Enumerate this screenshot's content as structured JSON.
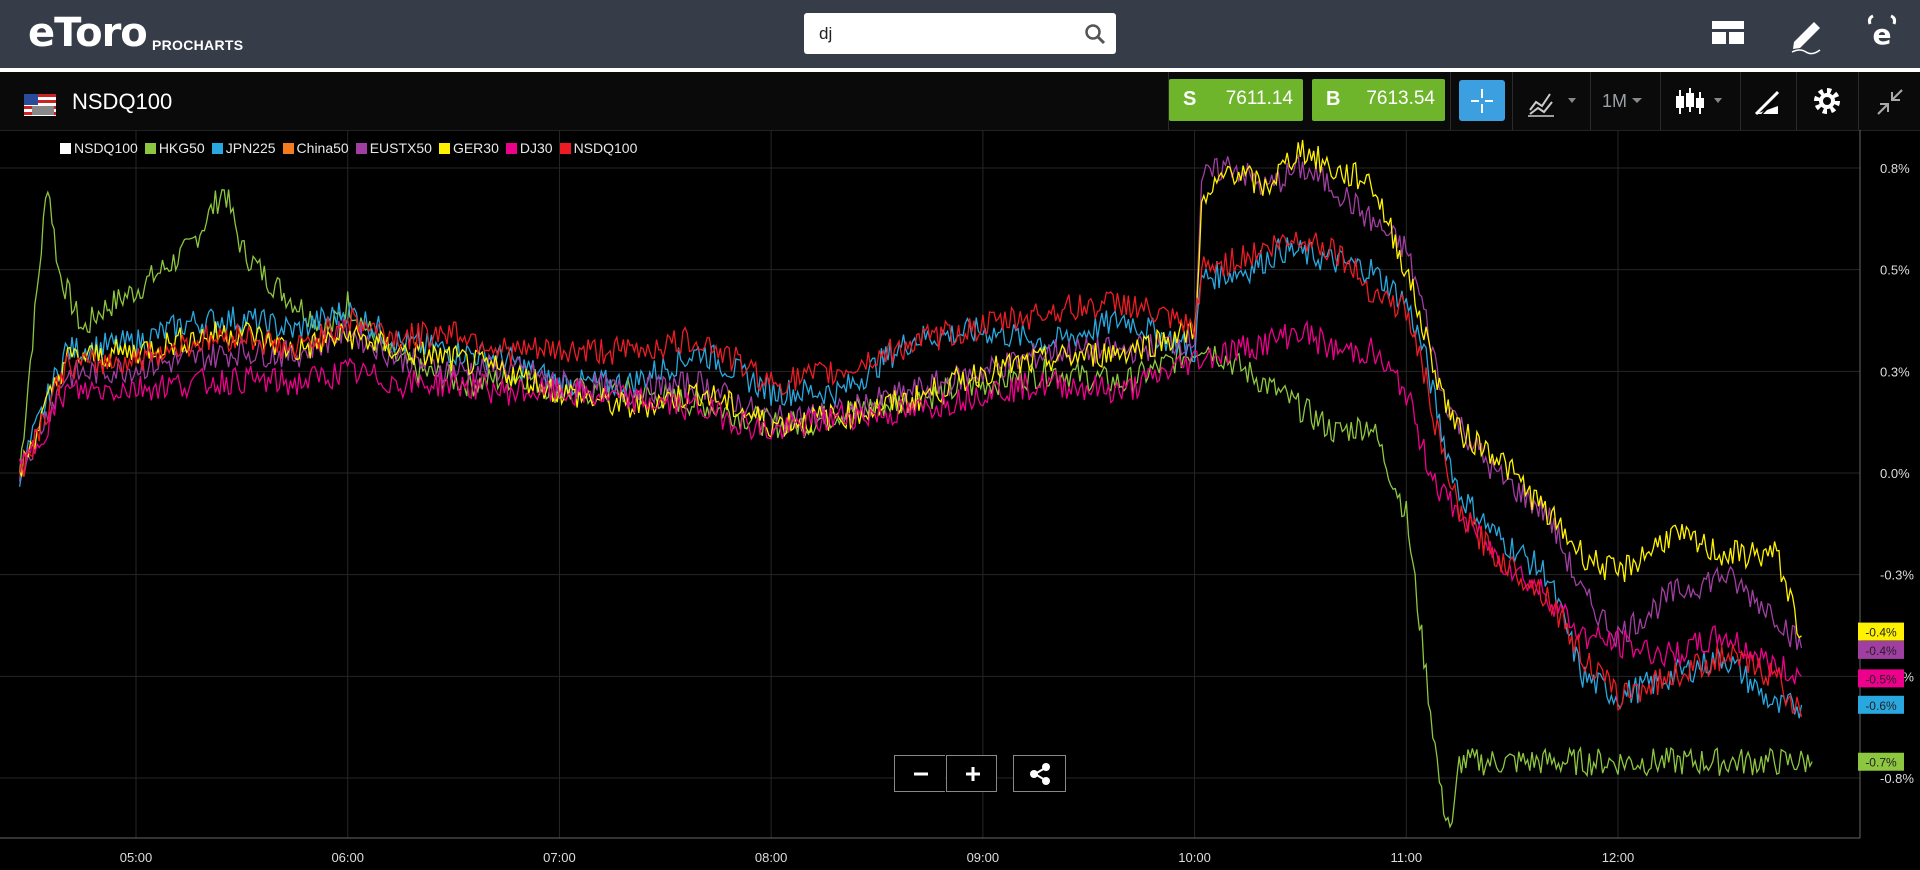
{
  "app": {
    "logo": "eToro",
    "product": "PROCHARTS"
  },
  "search": {
    "value": "dj"
  },
  "header": {
    "symbol": "NSDQ100"
  },
  "trade": {
    "sell_label": "S",
    "sell_price": "7611.14",
    "buy_label": "B",
    "buy_price": "7613.54"
  },
  "toolbar": {
    "timeframe": "1M"
  },
  "colors": {
    "topbar": "#373d48",
    "accent_blue": "#3b9fe0",
    "trade_green": "#6fb52c",
    "NSDQ100_base": "#ffffff",
    "HKG50": "#8dc63f",
    "JPN225": "#29a8e0",
    "China50": "#f47b20",
    "EUSTX50": "#a13ea1",
    "GER30": "#fff200",
    "DJ30": "#ec008c",
    "NSDQ100": "#ed1c24"
  },
  "chart_data": {
    "type": "line",
    "ylabel_format": "percent",
    "ylim": [
      -1.0,
      0.88
    ],
    "grid": true,
    "legend_position": "top-left",
    "x_ticks": [
      "05:00",
      "06:00",
      "07:00",
      "08:00",
      "09:00",
      "10:00",
      "11:00",
      "12:00"
    ],
    "y_ticks": [
      "0.8%",
      "0.5%",
      "0.3%",
      "0.0%",
      "-0.3%",
      "-0.5%",
      "-0.8%"
    ],
    "y_tick_values": [
      0.75,
      0.5,
      0.25,
      0.0,
      -0.25,
      -0.5,
      -0.75
    ],
    "x_range": [
      "04:25",
      "13:00"
    ],
    "series": [
      {
        "name": "NSDQ100",
        "color": "#ffffff",
        "x": [],
        "values": []
      },
      {
        "name": "HKG50",
        "color": "#8dc63f",
        "end_label": "-0.7%",
        "x": [
          "04:27",
          "04:35",
          "04:38",
          "04:45",
          "04:50",
          "05:00",
          "05:15",
          "05:25",
          "05:30",
          "05:37",
          "05:45",
          "05:55",
          "06:00",
          "06:10",
          "06:20",
          "06:35",
          "06:50",
          "07:00",
          "07:20",
          "07:40",
          "08:00",
          "08:10",
          "08:20",
          "08:40",
          "09:00",
          "09:20",
          "09:40",
          "10:00",
          "10:02",
          "10:20",
          "10:40",
          "10:50",
          "11:00",
          "11:05",
          "11:10",
          "11:13",
          "11:15",
          "12:00",
          "12:55"
        ],
        "values": [
          0.0,
          0.72,
          0.5,
          0.35,
          0.4,
          0.45,
          0.55,
          0.7,
          0.55,
          0.48,
          0.42,
          0.35,
          0.42,
          0.3,
          0.25,
          0.22,
          0.24,
          0.2,
          0.2,
          0.17,
          0.12,
          0.12,
          0.15,
          0.18,
          0.22,
          0.25,
          0.22,
          0.3,
          0.32,
          0.22,
          0.1,
          0.12,
          -0.1,
          -0.45,
          -0.8,
          -0.88,
          -0.71,
          -0.71,
          -0.71
        ]
      },
      {
        "name": "JPN225",
        "color": "#29a8e0",
        "x": [
          "04:27",
          "04:40",
          "05:00",
          "05:15",
          "05:30",
          "05:45",
          "06:00",
          "06:15",
          "06:30",
          "06:45",
          "07:00",
          "07:20",
          "07:40",
          "08:00",
          "08:20",
          "08:40",
          "09:00",
          "09:20",
          "09:40",
          "10:00",
          "10:02",
          "10:15",
          "10:25",
          "10:40",
          "10:50",
          "11:00",
          "11:05",
          "11:10",
          "11:15",
          "11:25",
          "11:40",
          "11:50",
          "12:00",
          "12:15",
          "12:30",
          "12:45",
          "12:52"
        ],
        "values": [
          0.0,
          0.3,
          0.32,
          0.37,
          0.38,
          0.35,
          0.4,
          0.32,
          0.3,
          0.28,
          0.22,
          0.22,
          0.3,
          0.2,
          0.2,
          0.33,
          0.35,
          0.32,
          0.38,
          0.3,
          0.48,
          0.5,
          0.55,
          0.52,
          0.5,
          0.42,
          0.3,
          0.1,
          -0.05,
          -0.15,
          -0.25,
          -0.5,
          -0.55,
          -0.5,
          -0.45,
          -0.58,
          -0.57
        ]
      },
      {
        "name": "China50",
        "color": "#f47b20",
        "x": [],
        "values": []
      },
      {
        "name": "EUSTX50",
        "color": "#a13ea1",
        "end_label": "-0.4%",
        "x": [
          "04:27",
          "04:40",
          "05:00",
          "05:15",
          "05:30",
          "05:45",
          "06:00",
          "06:15",
          "06:30",
          "06:45",
          "07:00",
          "07:20",
          "07:40",
          "08:00",
          "08:20",
          "08:40",
          "09:00",
          "09:20",
          "09:40",
          "10:00",
          "10:02",
          "10:10",
          "10:20",
          "10:30",
          "10:40",
          "10:50",
          "11:00",
          "11:05",
          "11:10",
          "11:15",
          "11:25",
          "11:40",
          "11:50",
          "12:00",
          "12:15",
          "12:30",
          "12:45",
          "12:52"
        ],
        "values": [
          0.0,
          0.24,
          0.26,
          0.28,
          0.3,
          0.29,
          0.35,
          0.28,
          0.25,
          0.26,
          0.22,
          0.2,
          0.22,
          0.13,
          0.15,
          0.2,
          0.25,
          0.3,
          0.3,
          0.33,
          0.72,
          0.76,
          0.7,
          0.75,
          0.7,
          0.62,
          0.55,
          0.4,
          0.2,
          0.12,
          0.0,
          -0.1,
          -0.3,
          -0.4,
          -0.3,
          -0.25,
          -0.35,
          -0.43
        ]
      },
      {
        "name": "GER30",
        "color": "#fff200",
        "end_label": "-0.4%",
        "x": [
          "04:27",
          "04:40",
          "05:00",
          "05:15",
          "05:30",
          "05:45",
          "06:00",
          "06:15",
          "06:30",
          "06:45",
          "07:00",
          "07:20",
          "07:40",
          "08:00",
          "08:20",
          "08:40",
          "09:00",
          "09:20",
          "09:40",
          "10:00",
          "10:02",
          "10:10",
          "10:20",
          "10:30",
          "10:40",
          "10:50",
          "11:00",
          "11:05",
          "11:10",
          "11:15",
          "11:25",
          "11:40",
          "11:50",
          "12:00",
          "12:15",
          "12:30",
          "12:45",
          "12:52"
        ],
        "values": [
          0.0,
          0.28,
          0.3,
          0.33,
          0.35,
          0.3,
          0.34,
          0.3,
          0.28,
          0.25,
          0.2,
          0.16,
          0.2,
          0.12,
          0.14,
          0.18,
          0.25,
          0.28,
          0.3,
          0.35,
          0.65,
          0.75,
          0.7,
          0.8,
          0.74,
          0.72,
          0.5,
          0.35,
          0.2,
          0.1,
          0.05,
          -0.1,
          -0.2,
          -0.25,
          -0.15,
          -0.2,
          -0.2,
          -0.4
        ]
      },
      {
        "name": "DJ30",
        "color": "#ec008c",
        "end_label": "-0.5%",
        "x": [
          "04:27",
          "04:40",
          "05:00",
          "05:15",
          "05:30",
          "05:45",
          "06:00",
          "06:15",
          "06:30",
          "06:45",
          "07:00",
          "07:20",
          "07:40",
          "08:00",
          "08:20",
          "08:40",
          "09:00",
          "09:20",
          "09:40",
          "10:00",
          "10:10",
          "10:20",
          "10:30",
          "10:40",
          "10:50",
          "11:00",
          "11:05",
          "11:10",
          "11:15",
          "11:25",
          "11:40",
          "11:50",
          "12:00",
          "12:15",
          "12:30",
          "12:45",
          "12:52"
        ],
        "values": [
          0.0,
          0.2,
          0.21,
          0.22,
          0.23,
          0.22,
          0.25,
          0.22,
          0.22,
          0.2,
          0.2,
          0.18,
          0.16,
          0.1,
          0.14,
          0.15,
          0.2,
          0.22,
          0.2,
          0.28,
          0.3,
          0.32,
          0.35,
          0.3,
          0.3,
          0.2,
          0.05,
          -0.05,
          -0.1,
          -0.2,
          -0.3,
          -0.4,
          -0.42,
          -0.45,
          -0.4,
          -0.48,
          -0.5
        ]
      },
      {
        "name": "NSDQ100",
        "color": "#ed1c24",
        "end_label": "-0.6%",
        "x": [
          "04:27",
          "04:40",
          "05:00",
          "05:15",
          "05:30",
          "05:45",
          "06:00",
          "06:15",
          "06:30",
          "06:45",
          "07:00",
          "07:20",
          "07:40",
          "08:00",
          "08:20",
          "08:40",
          "09:00",
          "09:20",
          "09:40",
          "10:00",
          "10:02",
          "10:10",
          "10:20",
          "10:30",
          "10:40",
          "10:50",
          "11:00",
          "11:05",
          "11:10",
          "11:15",
          "11:25",
          "11:40",
          "11:50",
          "12:00",
          "12:15",
          "12:30",
          "12:45",
          "12:52"
        ],
        "values": [
          0.0,
          0.26,
          0.28,
          0.32,
          0.34,
          0.3,
          0.38,
          0.33,
          0.35,
          0.3,
          0.3,
          0.3,
          0.33,
          0.22,
          0.25,
          0.32,
          0.36,
          0.4,
          0.42,
          0.35,
          0.5,
          0.52,
          0.55,
          0.58,
          0.55,
          0.45,
          0.4,
          0.25,
          0.05,
          -0.1,
          -0.2,
          -0.3,
          -0.45,
          -0.55,
          -0.5,
          -0.45,
          -0.5,
          -0.6
        ]
      }
    ],
    "end_labels": [
      {
        "text": "-0.4%",
        "color": "#fff200",
        "value": -0.39
      },
      {
        "text": "-0.4%",
        "color": "#a13ea1",
        "value": -0.435
      },
      {
        "text": "-0.5%",
        "color": "#ec008c",
        "value": -0.505
      },
      {
        "text": "-0.6%",
        "color": "#29a8e0",
        "value": -0.57
      },
      {
        "text": "-0.7%",
        "color": "#8dc63f",
        "value": -0.71
      }
    ]
  }
}
